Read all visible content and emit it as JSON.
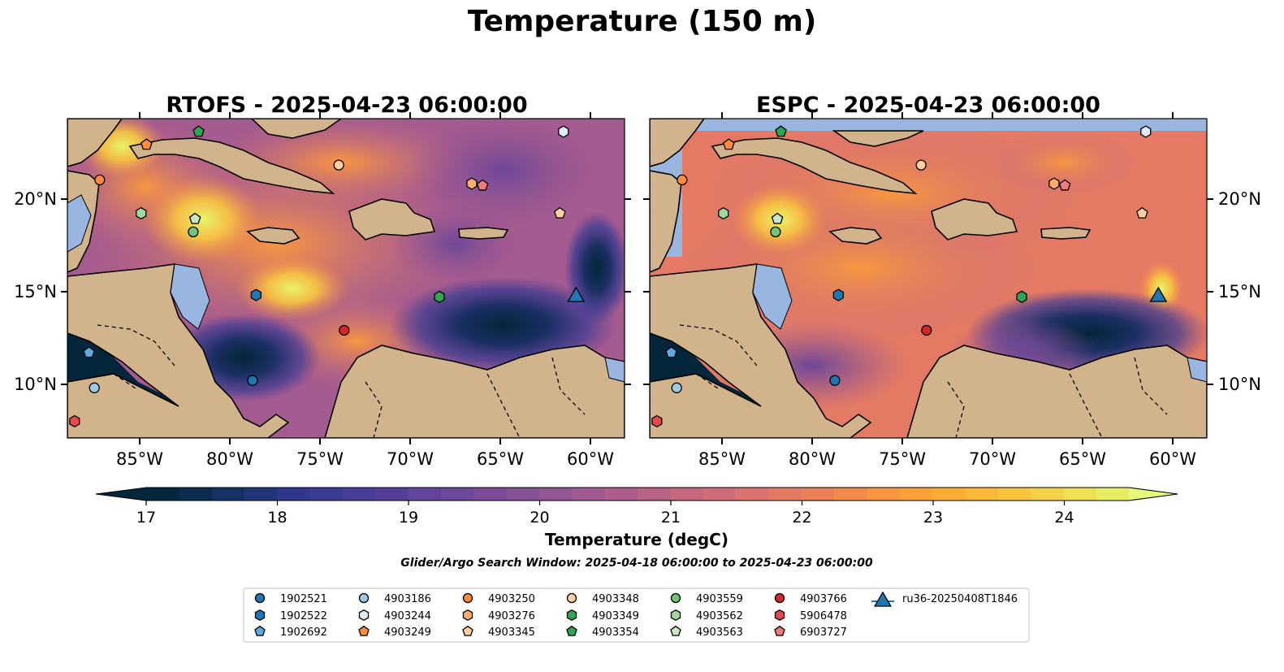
{
  "figure": {
    "title": "Temperature (150 m)",
    "caption": "Glider/Argo Search Window: 2025-04-18 06:00:00 to 2025-04-23 06:00:00"
  },
  "chart_data": [
    {
      "type": "heatmap",
      "title": "RTOFS - 2025-04-23 06:00:00",
      "xlim": [
        -89,
        -58
      ],
      "ylim": [
        7,
        24.2
      ],
      "xticks": [
        "85°W",
        "80°W",
        "75°W",
        "70°W",
        "65°W",
        "60°W"
      ],
      "xtick_values": [
        -85,
        -80,
        -75,
        -70,
        -65,
        -60
      ],
      "yticks": [
        "10°N",
        "15°N",
        "20°N"
      ],
      "ytick_values": [
        10,
        15,
        20
      ],
      "ytick_side": "left"
    },
    {
      "type": "heatmap",
      "title": "ESPC - 2025-04-23 06:00:00",
      "xlim": [
        -89,
        -58
      ],
      "ylim": [
        7,
        24.2
      ],
      "xticks": [
        "85°W",
        "80°W",
        "75°W",
        "70°W",
        "65°W",
        "60°W"
      ],
      "xtick_values": [
        -85,
        -80,
        -75,
        -70,
        -65,
        -60
      ],
      "yticks": [
        "10°N",
        "15°N",
        "20°N"
      ],
      "ytick_values": [
        10,
        15,
        20
      ],
      "ytick_side": "right"
    }
  ],
  "colorbar": {
    "label": "Temperature (degC)",
    "min": 16.6,
    "max": 24.6,
    "ticks": [
      "17",
      "18",
      "19",
      "20",
      "21",
      "22",
      "23",
      "24"
    ],
    "tick_values": [
      17,
      18,
      19,
      20,
      21,
      22,
      23,
      24
    ],
    "colors": [
      "#03263a",
      "#0b2c4f",
      "#163264",
      "#213779",
      "#2e398b",
      "#3b3b94",
      "#483e9a",
      "#553f99",
      "#61439a",
      "#6d4799",
      "#7a4c98",
      "#875197",
      "#945594",
      "#a05a90",
      "#ad5e8b",
      "#b96386",
      "#c56880",
      "#d06c78",
      "#da7270",
      "#e47a64",
      "#ec8158",
      "#f38b4b",
      "#f8963f",
      "#fca137",
      "#fdac33",
      "#fbb836",
      "#f8c43d",
      "#f4d248",
      "#eee055",
      "#e7ee63",
      "#e8f87a"
    ]
  },
  "markers": [
    {
      "id": "1902521",
      "shape": "circle",
      "color": "#1f77b4",
      "lon": -78.7,
      "lat": 10.1
    },
    {
      "id": "1902522",
      "shape": "hexagon",
      "color": "#1f77b4",
      "lon": -78.5,
      "lat": 14.7
    },
    {
      "id": "1902692",
      "shape": "pentagon",
      "color": "#5fa8e0",
      "lon": -87.8,
      "lat": 11.6
    },
    {
      "id": "4903186",
      "shape": "circle",
      "color": "#9ecae1",
      "lon": -87.5,
      "lat": 9.7
    },
    {
      "id": "4903244",
      "shape": "hexagon",
      "color": "#deebf7",
      "lon": -61.4,
      "lat": 23.5
    },
    {
      "id": "4903249",
      "shape": "pentagon",
      "color": "#fd8d3c",
      "lon": -84.6,
      "lat": 22.8
    },
    {
      "id": "4903250",
      "shape": "circle",
      "color": "#fd8d3c",
      "lon": -87.2,
      "lat": 20.9
    },
    {
      "id": "4903276",
      "shape": "hexagon",
      "color": "#fdae6b",
      "lon": -66.5,
      "lat": 20.7
    },
    {
      "id": "4903345",
      "shape": "pentagon",
      "color": "#fdd0a2",
      "lon": -61.6,
      "lat": 19.1
    },
    {
      "id": "4903348",
      "shape": "circle",
      "color": "#fdd0a2",
      "lon": -73.9,
      "lat": 21.7
    },
    {
      "id": "4903349",
      "shape": "hexagon",
      "color": "#31a354",
      "lon": -68.3,
      "lat": 14.6
    },
    {
      "id": "4903354",
      "shape": "pentagon",
      "color": "#31a354",
      "lon": -81.7,
      "lat": 23.5
    },
    {
      "id": "4903559",
      "shape": "circle",
      "color": "#74c476",
      "lon": -82.0,
      "lat": 18.1
    },
    {
      "id": "4903562",
      "shape": "hexagon",
      "color": "#a1d99b",
      "lon": -84.9,
      "lat": 19.1
    },
    {
      "id": "4903563",
      "shape": "pentagon",
      "color": "#c7e9c0",
      "lon": -81.9,
      "lat": 18.8
    },
    {
      "id": "4903766",
      "shape": "circle",
      "color": "#d62728",
      "lon": -73.6,
      "lat": 12.8
    },
    {
      "id": "5906478",
      "shape": "hexagon",
      "color": "#e8494c",
      "lon": -88.6,
      "lat": 7.9
    },
    {
      "id": "6903727",
      "shape": "pentagon",
      "color": "#f07b7b",
      "lon": -65.9,
      "lat": 20.6
    },
    {
      "id": "ru36-20250408T1846",
      "shape": "triangle",
      "color": "#1f77b4",
      "lon": -60.7,
      "lat": 14.7
    }
  ]
}
